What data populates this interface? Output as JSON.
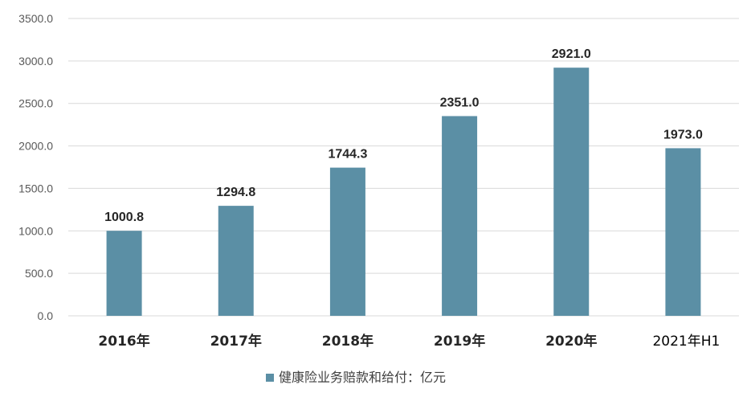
{
  "chart_data": {
    "type": "bar",
    "categories": [
      "2016年",
      "2017年",
      "2018年",
      "2019年",
      "2020年",
      "2021年H1"
    ],
    "series": [
      {
        "name": "健康险业务赔款和给付：亿元",
        "values": [
          1000.8,
          1294.8,
          1744.3,
          2351.0,
          2921.0,
          1973.0
        ],
        "data_labels": [
          "1000.8",
          "1294.8",
          "1744.3",
          "2351.0",
          "2921.0",
          "1973.0"
        ],
        "color": "#5b8fa5"
      }
    ],
    "ylim": [
      0,
      3500
    ],
    "yticks": [
      0,
      500,
      1000,
      1500,
      2000,
      2500,
      3000,
      3500
    ],
    "ytick_labels": [
      "0.0",
      "500.0",
      "1000.0",
      "1500.0",
      "2000.0",
      "2500.0",
      "3000.0",
      "3500.0"
    ],
    "grid": true,
    "grid_color": "#d9d9d9",
    "legend_position": "bottom"
  }
}
